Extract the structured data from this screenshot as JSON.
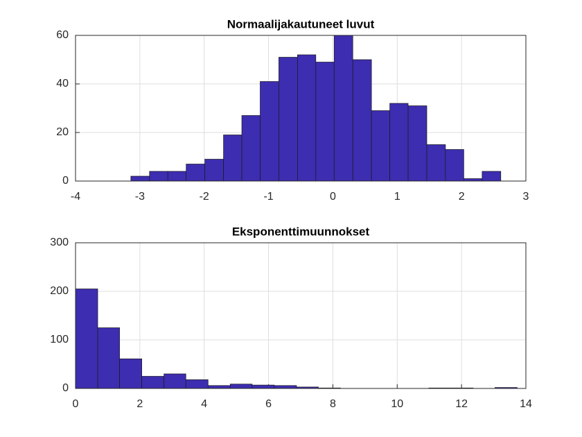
{
  "chart_data": [
    {
      "type": "histogram",
      "title": "Normaalijakautuneet luvut",
      "bins": [
        -3.14,
        -2.85,
        -2.565,
        -2.28,
        -1.99,
        -1.7,
        -1.415,
        -1.13,
        -0.84,
        -0.55,
        -0.265,
        0.02,
        0.31,
        0.6,
        0.885,
        1.17,
        1.46,
        1.75,
        2.035,
        2.32,
        2.61
      ],
      "values": [
        2,
        4,
        4,
        7,
        9,
        19,
        27,
        41,
        51,
        52,
        49,
        60,
        50,
        29,
        32,
        31,
        15,
        13,
        1,
        4
      ],
      "color": "#3d2db0",
      "xlim": [
        -4,
        3
      ],
      "ylim": [
        0,
        60
      ],
      "xticks": [
        -4,
        -3,
        -2,
        -1,
        0,
        1,
        2,
        3
      ],
      "yticks": [
        0,
        20,
        40,
        60
      ],
      "grid": true
    },
    {
      "type": "histogram",
      "title": "Eksponenttimuunnokset",
      "bins": [
        0,
        0.69,
        1.37,
        2.06,
        2.75,
        3.43,
        4.12,
        4.81,
        5.49,
        6.18,
        6.87,
        7.55,
        8.24,
        8.92,
        9.61,
        10.3,
        10.98,
        11.67,
        12.36,
        13.04,
        13.73
      ],
      "values": [
        205,
        125,
        61,
        25,
        30,
        18,
        6,
        9,
        7,
        6,
        3,
        1,
        0,
        0,
        0,
        0,
        1,
        1,
        0,
        2
      ],
      "color": "#3d2db0",
      "xlim": [
        0,
        14
      ],
      "ylim": [
        0,
        300
      ],
      "xticks": [
        0,
        2,
        4,
        6,
        8,
        10,
        12,
        14
      ],
      "yticks": [
        0,
        100,
        200,
        300
      ],
      "grid": true
    }
  ]
}
